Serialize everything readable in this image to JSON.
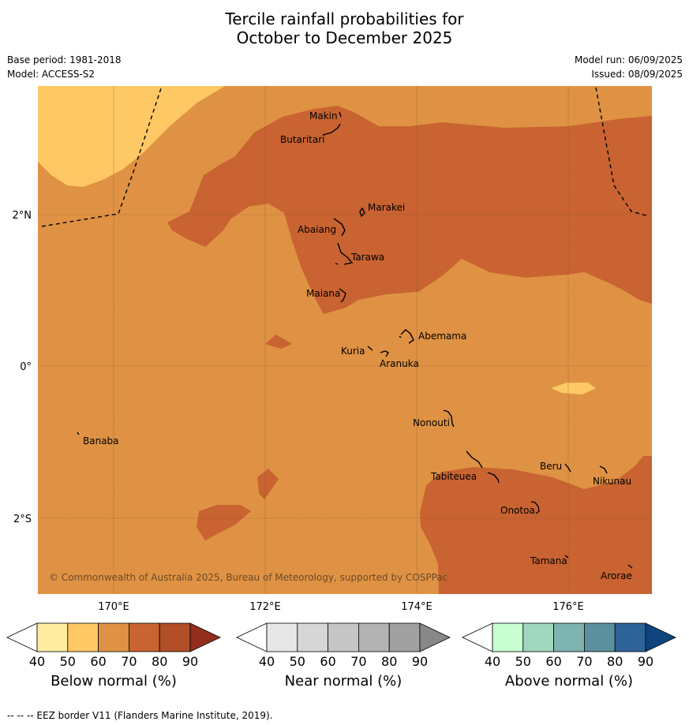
{
  "title_line1": "Tercile rainfall probabilities for",
  "title_line2": "October to December 2025",
  "base_period": "Base period: 1981-2018",
  "model": "Model: ACCESS-S2",
  "model_run": "Model run: 06/09/2025",
  "issued": "Issued: 08/09/2025",
  "lon_labels": [
    "170°E",
    "172°E",
    "174°E",
    "176°E"
  ],
  "lat_labels": [
    "2°N",
    "0°",
    "2°S"
  ],
  "places": [
    "Makin",
    "Butaritari",
    "Marakei",
    "Abaiang",
    "Tarawa",
    "Maiana",
    "Abemama",
    "Kuria",
    "Aranuka",
    "Nonouti",
    "Banaba",
    "Beru",
    "Tabiteuea",
    "Nikunau",
    "Onotoa",
    "Tamana",
    "Arorae"
  ],
  "copyright": "© Commonwealth of Australia 2025, Bureau of Meteorology, supported by COSPPac",
  "colorbars": [
    {
      "label": "Below normal (%)",
      "ticks": [
        "40",
        "50",
        "60",
        "70",
        "80",
        "90"
      ],
      "colors": [
        "#ffffff",
        "#feeda0",
        "#fec864",
        "#df9243",
        "#c96331",
        "#b24e28",
        "#942e1c"
      ]
    },
    {
      "label": "Near normal (%)",
      "ticks": [
        "40",
        "50",
        "60",
        "70",
        "80",
        "90"
      ],
      "colors": [
        "#ffffff",
        "#e7e7e7",
        "#d6d6d6",
        "#c6c6c6",
        "#b3b3b3",
        "#a0a0a0",
        "#888888"
      ]
    },
    {
      "label": "Above normal (%)",
      "ticks": [
        "40",
        "50",
        "60",
        "70",
        "80",
        "90"
      ],
      "colors": [
        "#ffffff",
        "#c9fdd2",
        "#a1d8bd",
        "#7db3b0",
        "#5d909f",
        "#2e639a",
        "#0e447d"
      ]
    }
  ],
  "footnote": "--  --  -- EEZ border V11 (Flanders Marine Institute, 2019).",
  "colors": {
    "ocean_base": "#df9243",
    "strong": "#c96331",
    "weak": "#fec864"
  }
}
